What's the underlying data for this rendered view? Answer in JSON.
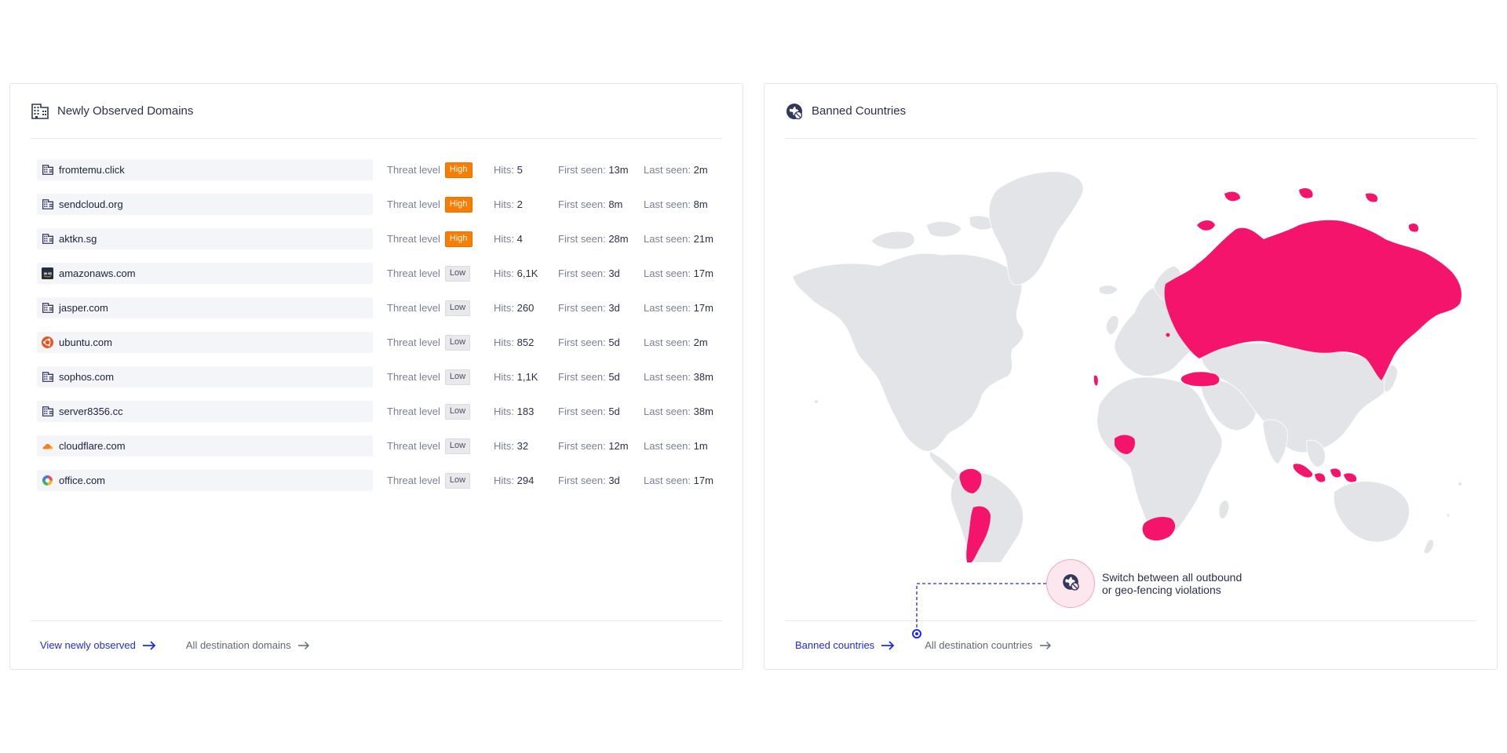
{
  "domains_card": {
    "title": "Newly Observed Domains",
    "icon": "building-icon",
    "threat_label": "Threat level",
    "hits_label": "Hits:",
    "first_label": "First seen:",
    "last_label": "Last seen:",
    "rows": [
      {
        "name": "fromtemu.click",
        "icon": "building-icon",
        "threat": "High",
        "hits": "5",
        "first": "13m",
        "last": "2m"
      },
      {
        "name": "sendcloud.org",
        "icon": "building-icon",
        "threat": "High",
        "hits": "2",
        "first": "8m",
        "last": "8m"
      },
      {
        "name": "aktkn.sg",
        "icon": "building-icon",
        "threat": "High",
        "hits": "4",
        "first": "28m",
        "last": "21m"
      },
      {
        "name": "amazonaws.com",
        "icon": "aws-icon",
        "threat": "Low",
        "hits": "6,1K",
        "first": "3d",
        "last": "17m"
      },
      {
        "name": "jasper.com",
        "icon": "building-icon",
        "threat": "Low",
        "hits": "260",
        "first": "3d",
        "last": "17m"
      },
      {
        "name": "ubuntu.com",
        "icon": "ubuntu-icon",
        "threat": "Low",
        "hits": "852",
        "first": "5d",
        "last": "2m"
      },
      {
        "name": "sophos.com",
        "icon": "building-icon",
        "threat": "Low",
        "hits": "1,1K",
        "first": "5d",
        "last": "38m"
      },
      {
        "name": "server8356.cc",
        "icon": "building-icon",
        "threat": "Low",
        "hits": "183",
        "first": "5d",
        "last": "38m"
      },
      {
        "name": "cloudflare.com",
        "icon": "cloudflare-icon",
        "threat": "Low",
        "hits": "32",
        "first": "12m",
        "last": "1m"
      },
      {
        "name": "office.com",
        "icon": "office-icon",
        "threat": "Low",
        "hits": "294",
        "first": "3d",
        "last": "17m"
      }
    ],
    "footer": {
      "primary": "View newly observed",
      "secondary": "All destination domains"
    }
  },
  "countries_card": {
    "title": "Banned Countries",
    "icon": "globe-lock-icon",
    "banned": [
      "Russia",
      "Turkey",
      "Colombia",
      "Argentina",
      "Nigeria",
      "South Africa",
      "Indonesia",
      "Greenland-north islands"
    ],
    "colors": {
      "banned": "#f5146b",
      "land": "#e3e4e8"
    },
    "tooltip": {
      "line1": "Switch between all outbound",
      "line2": "or geo-fencing violations"
    },
    "footer": {
      "primary": "Banned countries",
      "secondary": "All destination countries"
    }
  },
  "colors": {
    "accent": "#1f2be0",
    "high": "#fb7d00",
    "low": "#e9e9ec"
  }
}
